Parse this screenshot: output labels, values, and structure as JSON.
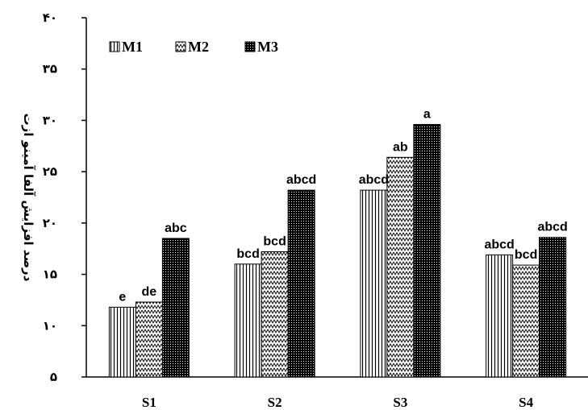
{
  "chart_data": {
    "type": "bar",
    "title": "",
    "xlabel": "",
    "ylabel": "درصد افزایش آلفا آمینو ازت",
    "ylim": [
      5,
      40
    ],
    "yticks": [
      5,
      10,
      15,
      20,
      25,
      30,
      35,
      40
    ],
    "ytick_labels": [
      "۵",
      "۱۰",
      "۱۵",
      "۲۰",
      "۲۵",
      "۳۰",
      "۳۵",
      "۴۰"
    ],
    "categories": [
      "S1",
      "S2",
      "S3",
      "S4"
    ],
    "legend_position": "top-left",
    "grid": false,
    "series": [
      {
        "name": "M1",
        "pattern": "vertical-lines",
        "values": [
          11.8,
          16.0,
          23.2,
          16.9
        ],
        "labels": [
          "e",
          "bcd",
          "abcd",
          "abcd"
        ]
      },
      {
        "name": "M2",
        "pattern": "zigzag",
        "values": [
          12.3,
          17.2,
          26.4,
          15.9
        ],
        "labels": [
          "de",
          "bcd",
          "ab",
          "bcd"
        ]
      },
      {
        "name": "M3",
        "pattern": "dots",
        "values": [
          18.5,
          23.2,
          29.6,
          18.6
        ],
        "labels": [
          "abc",
          "abcd",
          "a",
          "abcd"
        ]
      }
    ]
  }
}
